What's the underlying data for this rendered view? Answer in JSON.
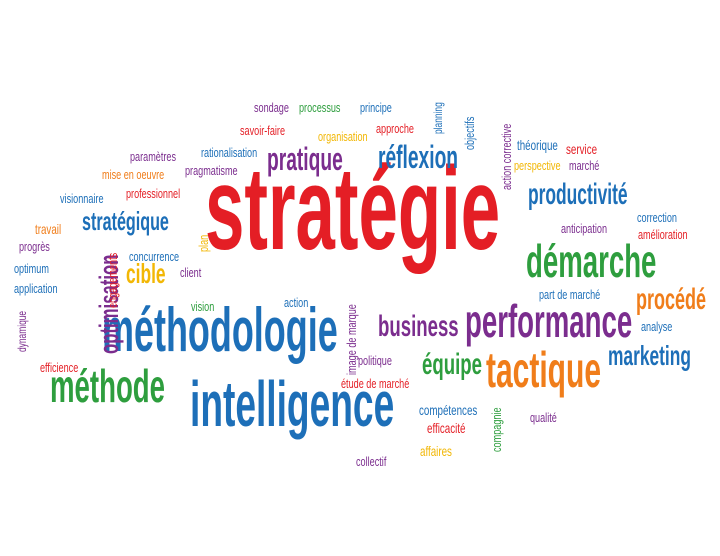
{
  "palette": {
    "red": "#e41e25",
    "blue": "#1d6fb8",
    "purple": "#7b2d8e",
    "green": "#2e9e3e",
    "orange": "#f07d1a",
    "yellow": "#f2b705"
  },
  "words": [
    {
      "text": "stratégie",
      "color": "#e41e25"
    },
    {
      "text": "méthodologie",
      "color": "#1d6fb8"
    },
    {
      "text": "intelligence",
      "color": "#1d6fb8"
    },
    {
      "text": "performance",
      "color": "#7b2d8e"
    },
    {
      "text": "tactique",
      "color": "#f07d1a"
    },
    {
      "text": "démarche",
      "color": "#2e9e3e"
    },
    {
      "text": "méthode",
      "color": "#2e9e3e"
    },
    {
      "text": "pratique",
      "color": "#7b2d8e"
    },
    {
      "text": "réflexion",
      "color": "#1d6fb8"
    },
    {
      "text": "productivité",
      "color": "#1d6fb8"
    },
    {
      "text": "marketing",
      "color": "#1d6fb8"
    },
    {
      "text": "business",
      "color": "#7b2d8e"
    },
    {
      "text": "équipe",
      "color": "#2e9e3e"
    },
    {
      "text": "procédé",
      "color": "#f07d1a"
    },
    {
      "text": "stratégique",
      "color": "#1d6fb8"
    },
    {
      "text": "cible",
      "color": "#f2b705"
    },
    {
      "text": "optimisation",
      "color": "#7b2d8e"
    },
    {
      "text": "sondage",
      "color": "#7b2d8e"
    },
    {
      "text": "processus",
      "color": "#2e9e3e"
    },
    {
      "text": "principe",
      "color": "#1d6fb8"
    },
    {
      "text": "planning",
      "color": "#1d6fb8"
    },
    {
      "text": "savoir-faire",
      "color": "#e41e25"
    },
    {
      "text": "organisation",
      "color": "#f2b705"
    },
    {
      "text": "approche",
      "color": "#e41e25"
    },
    {
      "text": "objectifs",
      "color": "#1d6fb8"
    },
    {
      "text": "action corrective",
      "color": "#7b2d8e"
    },
    {
      "text": "théorique",
      "color": "#1d6fb8"
    },
    {
      "text": "service",
      "color": "#e41e25"
    },
    {
      "text": "perspective",
      "color": "#f2b705"
    },
    {
      "text": "marché",
      "color": "#7b2d8e"
    },
    {
      "text": "rationalisation",
      "color": "#1d6fb8"
    },
    {
      "text": "paramètres",
      "color": "#7b2d8e"
    },
    {
      "text": "pragmatisme",
      "color": "#7b2d8e"
    },
    {
      "text": "mise en oeuvre",
      "color": "#f07d1a"
    },
    {
      "text": "visionnaire",
      "color": "#1d6fb8"
    },
    {
      "text": "professionnel",
      "color": "#e41e25"
    },
    {
      "text": "correction",
      "color": "#1d6fb8"
    },
    {
      "text": "anticipation",
      "color": "#7b2d8e"
    },
    {
      "text": "amélioration",
      "color": "#e41e25"
    },
    {
      "text": "travail",
      "color": "#f07d1a"
    },
    {
      "text": "progrès",
      "color": "#7b2d8e"
    },
    {
      "text": "optimum",
      "color": "#1d6fb8"
    },
    {
      "text": "application",
      "color": "#1d6fb8"
    },
    {
      "text": "dynamique",
      "color": "#7b2d8e"
    },
    {
      "text": "efficience",
      "color": "#e41e25"
    },
    {
      "text": "engagements",
      "color": "#e41e25"
    },
    {
      "text": "concurrence",
      "color": "#1d6fb8"
    },
    {
      "text": "plan",
      "color": "#f2b705"
    },
    {
      "text": "client",
      "color": "#7b2d8e"
    },
    {
      "text": "vision",
      "color": "#2e9e3e"
    },
    {
      "text": "action",
      "color": "#1d6fb8"
    },
    {
      "text": "image de marque",
      "color": "#7b2d8e"
    },
    {
      "text": "politique",
      "color": "#7b2d8e"
    },
    {
      "text": "étude de marché",
      "color": "#e41e25"
    },
    {
      "text": "part de marché",
      "color": "#1d6fb8"
    },
    {
      "text": "analyse",
      "color": "#1d6fb8"
    },
    {
      "text": "compétences",
      "color": "#1d6fb8"
    },
    {
      "text": "efficacité",
      "color": "#e41e25"
    },
    {
      "text": "affaires",
      "color": "#f2b705"
    },
    {
      "text": "collectif",
      "color": "#7b2d8e"
    },
    {
      "text": "compagnie",
      "color": "#2e9e3e"
    },
    {
      "text": "qualité",
      "color": "#7b2d8e"
    }
  ]
}
